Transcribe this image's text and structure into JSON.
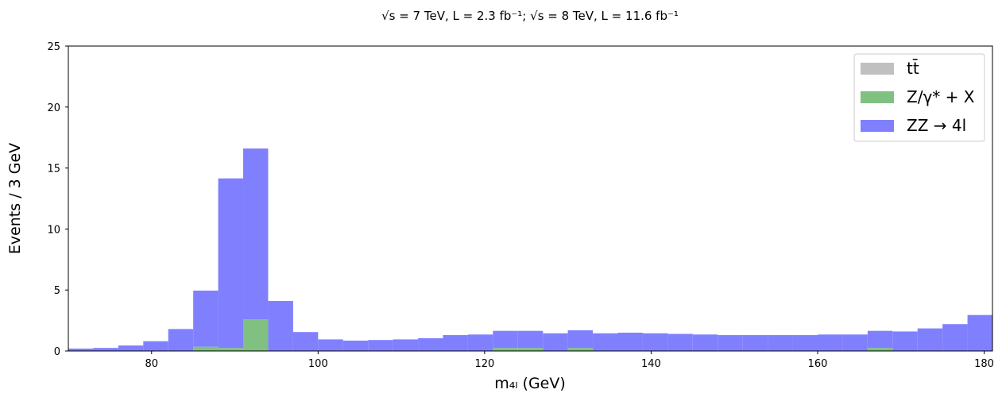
{
  "chart_data": {
    "type": "bar",
    "stacked": true,
    "title": "√s = 7 TeV, L = 2.3 fb⁻¹; √s = 8 TeV, L = 11.6 fb⁻¹",
    "xlabel": "m₄ₗ (GeV)",
    "ylabel": "Events / 3 GeV",
    "xlim": [
      70,
      181
    ],
    "ylim": [
      0,
      25
    ],
    "xticks": [
      80,
      100,
      120,
      140,
      160,
      180
    ],
    "yticks": [
      0,
      5,
      10,
      15,
      20,
      25
    ],
    "bin_width": 3,
    "bin_edges_start": 70,
    "legend_position": "top-right",
    "grid": false,
    "series": [
      {
        "name": "tt̄",
        "color": "#c0c0c0",
        "values": [
          0,
          0,
          0,
          0,
          0,
          0,
          0,
          0,
          0,
          0,
          0,
          0,
          0,
          0,
          0,
          0,
          0,
          0,
          0,
          0,
          0,
          0,
          0,
          0,
          0,
          0,
          0,
          0,
          0,
          0,
          0,
          0,
          0,
          0,
          0,
          0,
          0,
          0
        ]
      },
      {
        "name": "Z/γ* + X",
        "color": "#80c080",
        "values": [
          0,
          0,
          0,
          0,
          0,
          0.35,
          0.25,
          2.6,
          0,
          0,
          0,
          0,
          0,
          0,
          0,
          0,
          0,
          0.25,
          0.25,
          0,
          0.25,
          0,
          0,
          0,
          0,
          0,
          0,
          0,
          0,
          0,
          0,
          0,
          0.25,
          0,
          0,
          0,
          0,
          0
        ]
      },
      {
        "name": "ZZ → 4l",
        "color": "#8080ff",
        "values": [
          0.2,
          0.25,
          0.45,
          0.8,
          1.8,
          4.6,
          13.9,
          14.0,
          4.1,
          1.55,
          0.95,
          0.85,
          0.9,
          0.95,
          1.05,
          1.3,
          1.35,
          1.4,
          1.4,
          1.45,
          1.45,
          1.45,
          1.5,
          1.45,
          1.4,
          1.35,
          1.3,
          1.3,
          1.3,
          1.3,
          1.35,
          1.35,
          1.4,
          1.6,
          1.85,
          2.2,
          2.95,
          0
        ]
      }
    ]
  }
}
